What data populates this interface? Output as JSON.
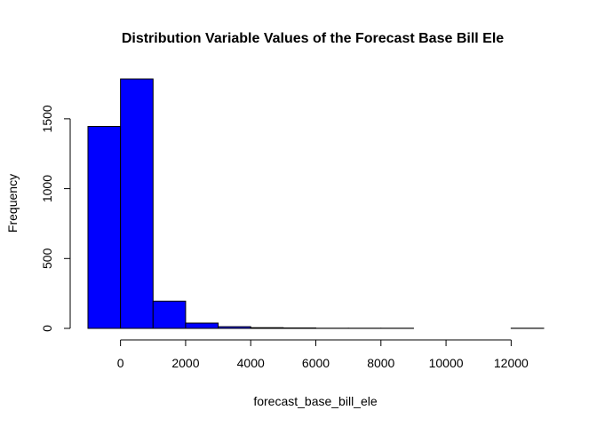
{
  "chart_data": {
    "type": "bar",
    "title": "Distribution Variable Values of the Forecast Base Bill Ele",
    "xlabel": "forecast_base_bill_ele",
    "ylabel": "Frequency",
    "bin_edges": [
      -1000,
      0,
      1000,
      2000,
      3000,
      4000,
      5000,
      6000,
      7000,
      8000,
      9000,
      10000,
      11000,
      12000,
      13000
    ],
    "values": [
      1445,
      1785,
      195,
      38,
      12,
      5,
      3,
      1,
      1,
      1,
      0,
      0,
      0,
      1
    ],
    "xlim": [
      -1000,
      13000
    ],
    "ylim": [
      0,
      1785
    ],
    "x_ticks": [
      0,
      2000,
      4000,
      6000,
      8000,
      10000,
      12000
    ],
    "x_tick_labels": [
      "0",
      "2000",
      "4000",
      "6000",
      "8000",
      "10000",
      "12000"
    ],
    "y_ticks": [
      0,
      500,
      1000,
      1500
    ],
    "y_tick_labels": [
      "0",
      "500",
      "1000",
      "1500"
    ],
    "bar_color": "#0000ff",
    "grid": false,
    "legend": "none"
  }
}
